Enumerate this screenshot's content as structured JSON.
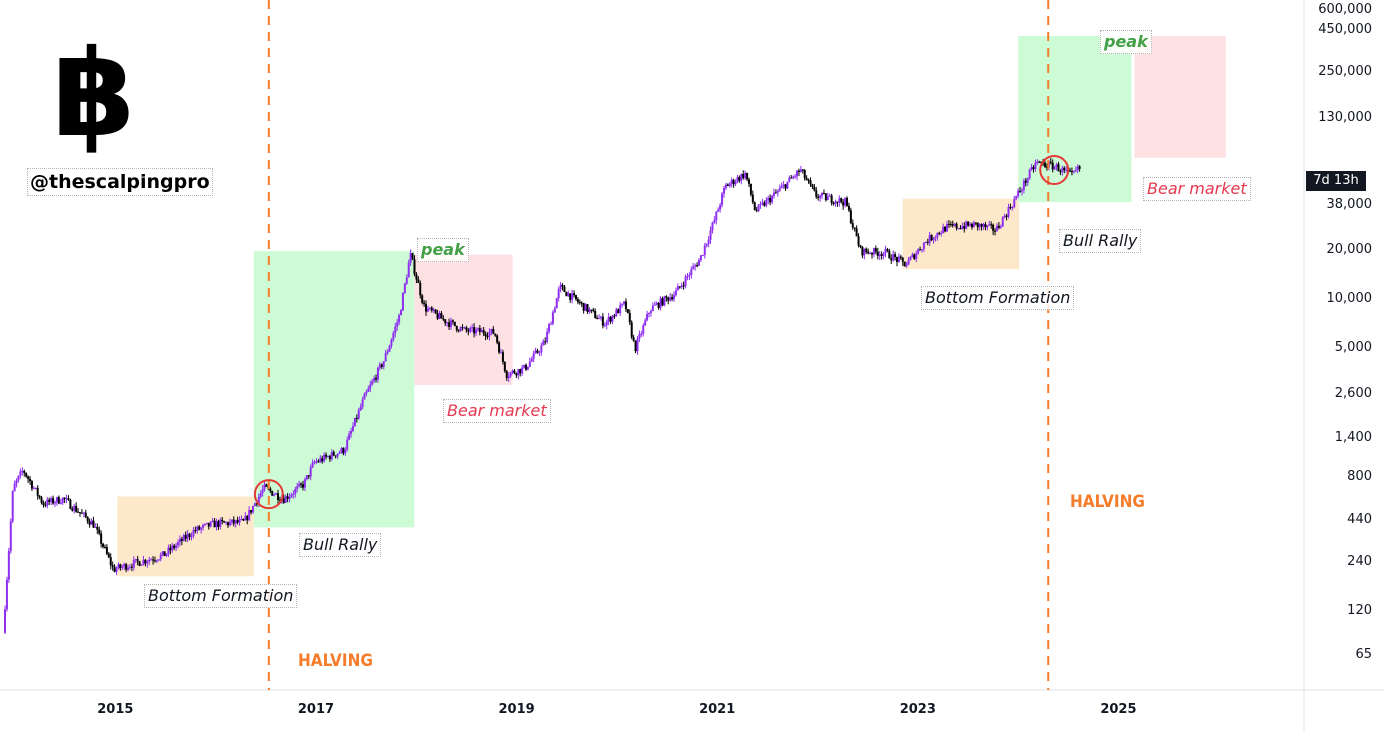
{
  "logo": {
    "symbol": "฿"
  },
  "handle": "@thescalpingpro",
  "timer": "7d 13h",
  "chart_data": {
    "type": "candlestick",
    "y_scale": "log",
    "ylim": [
      40,
      700000
    ],
    "xlim": [
      2013.85,
      2026.85
    ],
    "y_ticks": [
      "600,000",
      "450,000",
      "250,000",
      "130,000",
      "38,000",
      "20,000",
      "10,000",
      "5,000",
      "2,600",
      "1,400",
      "800",
      "440",
      "240",
      "120",
      "65"
    ],
    "y_tick_values": [
      600000,
      450000,
      250000,
      130000,
      38000,
      20000,
      10000,
      5000,
      2600,
      1400,
      800,
      440,
      240,
      120,
      65
    ],
    "x_ticks": [
      "2015",
      "2017",
      "2019",
      "2021",
      "2023",
      "2025"
    ],
    "x_tick_values": [
      2015,
      2017,
      2019,
      2021,
      2023,
      2025
    ],
    "price_path": [
      [
        2013.9,
        90
      ],
      [
        2014.0,
        700
      ],
      [
        2014.1,
        900
      ],
      [
        2014.3,
        560
      ],
      [
        2014.5,
        600
      ],
      [
        2014.8,
        420
      ],
      [
        2015.0,
        220
      ],
      [
        2015.2,
        240
      ],
      [
        2015.5,
        270
      ],
      [
        2015.8,
        380
      ],
      [
        2016.0,
        420
      ],
      [
        2016.3,
        430
      ],
      [
        2016.5,
        700
      ],
      [
        2016.7,
        600
      ],
      [
        2016.9,
        740
      ],
      [
        2017.0,
        1000
      ],
      [
        2017.3,
        1200
      ],
      [
        2017.5,
        2500
      ],
      [
        2017.7,
        4300
      ],
      [
        2017.85,
        8000
      ],
      [
        2017.96,
        19000
      ],
      [
        2018.1,
        9000
      ],
      [
        2018.3,
        7500
      ],
      [
        2018.5,
        6500
      ],
      [
        2018.8,
        6300
      ],
      [
        2018.92,
        3500
      ],
      [
        2019.1,
        3800
      ],
      [
        2019.3,
        5500
      ],
      [
        2019.45,
        12000
      ],
      [
        2019.7,
        9000
      ],
      [
        2019.9,
        7200
      ],
      [
        2020.1,
        9500
      ],
      [
        2020.2,
        5000
      ],
      [
        2020.35,
        8800
      ],
      [
        2020.6,
        11000
      ],
      [
        2020.85,
        18000
      ],
      [
        2021.0,
        32000
      ],
      [
        2021.1,
        50000
      ],
      [
        2021.3,
        60000
      ],
      [
        2021.4,
        35000
      ],
      [
        2021.6,
        45000
      ],
      [
        2021.85,
        63000
      ],
      [
        2022.0,
        44000
      ],
      [
        2022.3,
        40000
      ],
      [
        2022.45,
        20000
      ],
      [
        2022.7,
        19500
      ],
      [
        2022.9,
        16500
      ],
      [
        2023.1,
        23000
      ],
      [
        2023.3,
        28000
      ],
      [
        2023.6,
        29000
      ],
      [
        2023.8,
        27000
      ],
      [
        2024.0,
        43000
      ],
      [
        2024.2,
        70000
      ],
      [
        2024.4,
        66000
      ],
      [
        2024.55,
        58000
      ],
      [
        2024.62,
        64000
      ]
    ],
    "halving_years": [
      2016.53,
      2024.3
    ],
    "annotations": [
      {
        "text": "Bottom Formation",
        "color": "tan"
      },
      {
        "text": "Bull Rally",
        "color": "green"
      },
      {
        "text": "peak",
        "color": "green"
      },
      {
        "text": "Bear market",
        "color": "red"
      },
      {
        "text": "HALVING",
        "color": "orange"
      },
      {
        "text": "Bottom Formation",
        "color": "tan"
      },
      {
        "text": "Bull Rally",
        "color": "green"
      },
      {
        "text": "peak",
        "color": "green"
      },
      {
        "text": "Bear market",
        "color": "red"
      },
      {
        "text": "HALVING",
        "color": "orange"
      }
    ],
    "zones": [
      {
        "kind": "bottom",
        "x0": 2015.02,
        "x1": 2016.38,
        "y0": 200,
        "y1": 620
      },
      {
        "kind": "bull",
        "x0": 2016.38,
        "x1": 2017.98,
        "y0": 400,
        "y1": 20000
      },
      {
        "kind": "bear",
        "x0": 2017.98,
        "x1": 2018.96,
        "y0": 3000,
        "y1": 19000
      },
      {
        "kind": "bottom",
        "x0": 2022.85,
        "x1": 2024.01,
        "y0": 15500,
        "y1": 42000
      },
      {
        "kind": "bull",
        "x0": 2024.0,
        "x1": 2025.13,
        "y0": 40000,
        "y1": 420000
      },
      {
        "kind": "bear",
        "x0": 2025.16,
        "x1": 2026.07,
        "y0": 75000,
        "y1": 420000
      }
    ],
    "circles": [
      [
        2016.53,
        640
      ],
      [
        2024.36,
        63000
      ]
    ]
  },
  "colors": {
    "bull": "#8e2ff0",
    "bear": "#000000",
    "halving": "#f57c2a",
    "circle": "#e53935",
    "bottom_zone": "#fde9c9",
    "bull_zone": "#ccfbd6",
    "bear_zone": "#fde1e3"
  }
}
